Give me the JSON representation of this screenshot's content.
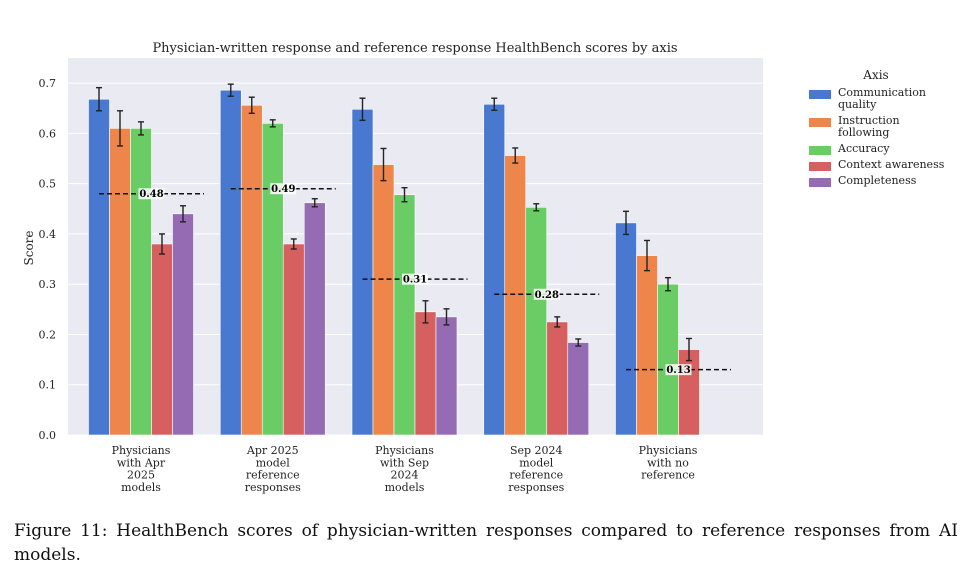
{
  "caption": "Figure 11: HealthBench scores of physician-written responses compared to reference responses from AI models.",
  "chart_data": {
    "type": "bar",
    "title": "Physician-written response and reference response HealthBench scores by axis",
    "ylabel": "Score",
    "xlabel": "",
    "ylim": [
      0,
      0.75
    ],
    "yticks": [
      "0.0",
      "0.1",
      "0.2",
      "0.3",
      "0.4",
      "0.5",
      "0.6",
      "0.7"
    ],
    "grid": true,
    "legend": {
      "title": "Axis",
      "placement": "outside-right"
    },
    "categories": [
      [
        "Physicians",
        "with Apr",
        "2025",
        "models"
      ],
      [
        "Apr 2025",
        "model",
        "reference",
        "responses"
      ],
      [
        "Physicians",
        "with Sep",
        "2024",
        "models"
      ],
      [
        "Sep 2024",
        "model",
        "reference",
        "responses"
      ],
      [
        "Physicians",
        "with no",
        "reference"
      ]
    ],
    "series": [
      {
        "name": [
          "Communication",
          "quality"
        ],
        "color": "#4878d0",
        "values": [
          0.668,
          0.686,
          0.648,
          0.658,
          0.422
        ],
        "errors": [
          0.023,
          0.012,
          0.022,
          0.012,
          0.023
        ]
      },
      {
        "name": [
          "Instruction",
          "following"
        ],
        "color": "#ee854a",
        "values": [
          0.61,
          0.656,
          0.538,
          0.556,
          0.357
        ],
        "errors": [
          0.035,
          0.016,
          0.032,
          0.015,
          0.03
        ]
      },
      {
        "name": [
          "Accuracy"
        ],
        "color": "#6acc64",
        "values": [
          0.61,
          0.62,
          0.478,
          0.453,
          0.3
        ],
        "errors": [
          0.013,
          0.007,
          0.014,
          0.007,
          0.013
        ]
      },
      {
        "name": [
          "Context awareness"
        ],
        "color": "#d65f5f",
        "values": [
          0.38,
          0.38,
          0.245,
          0.225,
          0.17
        ],
        "errors": [
          0.02,
          0.01,
          0.022,
          0.01,
          0.022
        ]
      },
      {
        "name": [
          "Completeness"
        ],
        "color": "#956cb4",
        "values": [
          0.44,
          0.462,
          0.235,
          0.184,
          null
        ],
        "errors": [
          0.016,
          0.008,
          0.016,
          0.007,
          null
        ]
      }
    ],
    "reference_lines": [
      {
        "value": 0.48,
        "label": "0.48"
      },
      {
        "value": 0.49,
        "label": "0.49"
      },
      {
        "value": 0.31,
        "label": "0.31"
      },
      {
        "value": 0.28,
        "label": "0.28"
      },
      {
        "value": 0.13,
        "label": "0.13"
      }
    ]
  }
}
